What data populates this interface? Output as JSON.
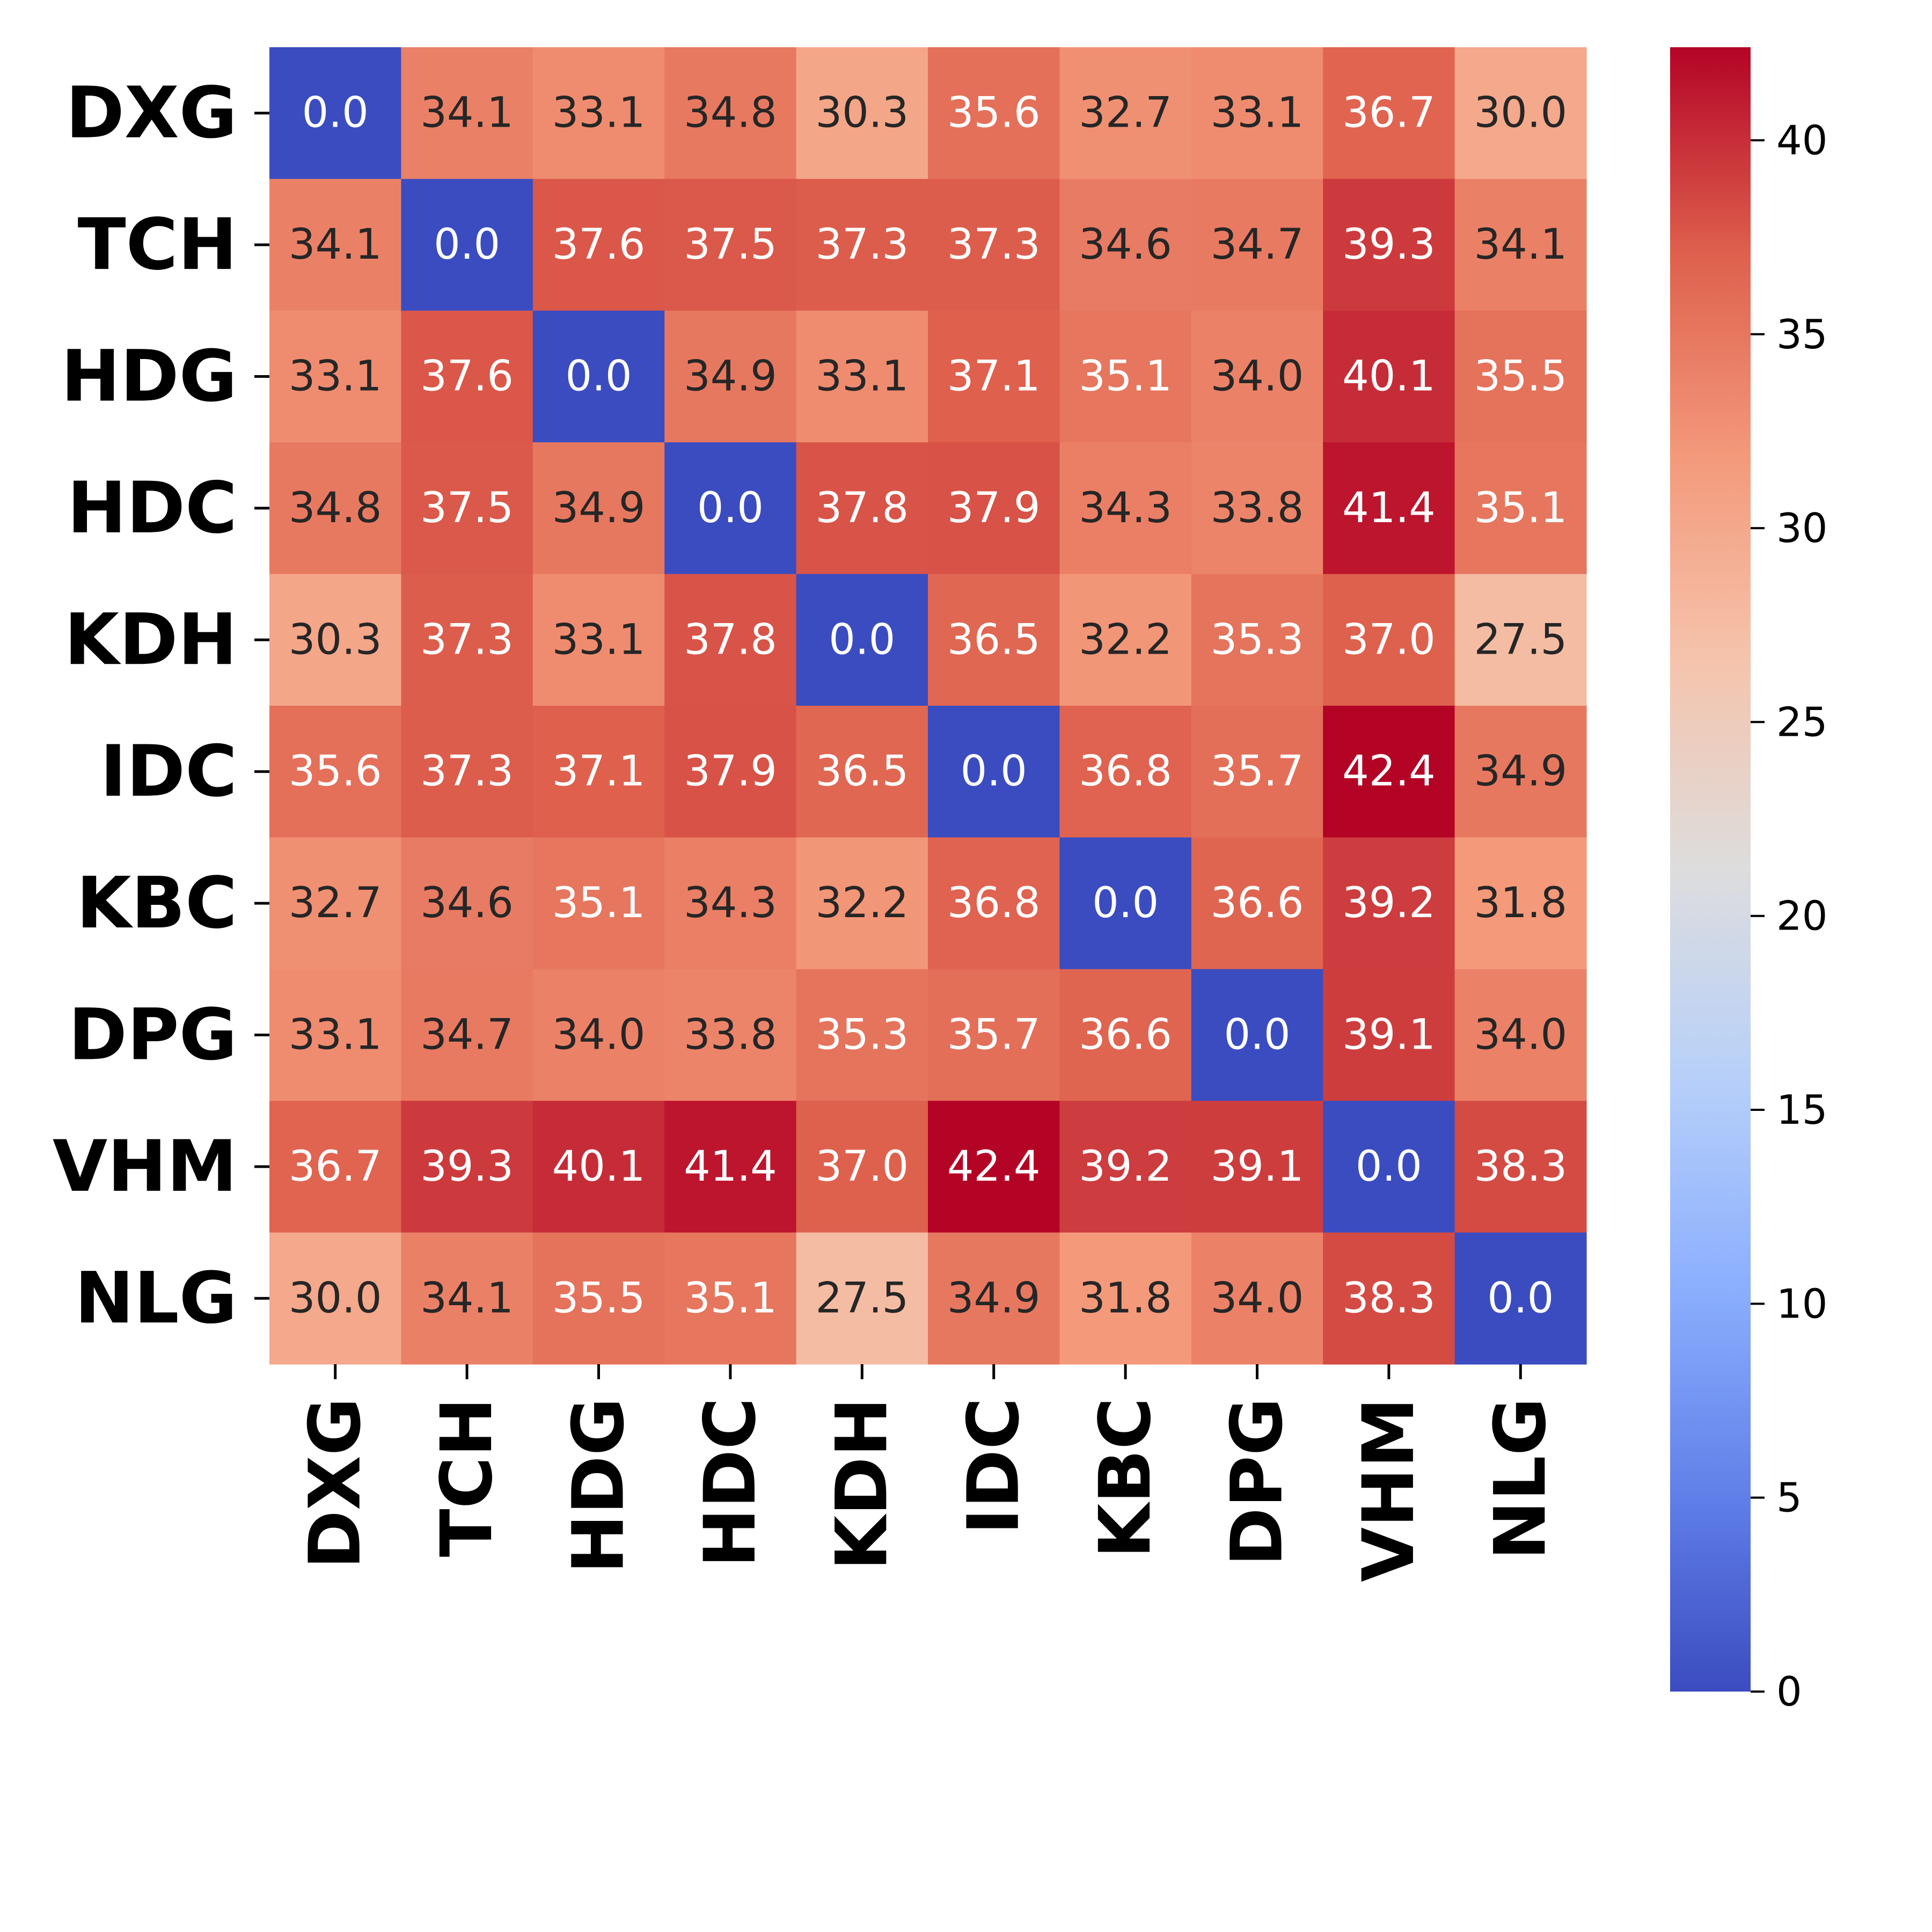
{
  "chart_data": {
    "type": "heatmap",
    "title": "",
    "xlabel": "",
    "ylabel": "",
    "row_labels": [
      "DXG",
      "TCH",
      "HDG",
      "HDC",
      "KDH",
      "IDC",
      "KBC",
      "DPG",
      "VHM",
      "NLG"
    ],
    "col_labels": [
      "DXG",
      "TCH",
      "HDG",
      "HDC",
      "KDH",
      "IDC",
      "KBC",
      "DPG",
      "VHM",
      "NLG"
    ],
    "values": [
      [
        0.0,
        34.1,
        33.1,
        34.8,
        30.3,
        35.6,
        32.7,
        33.1,
        36.7,
        30.0
      ],
      [
        34.1,
        0.0,
        37.6,
        37.5,
        37.3,
        37.3,
        34.6,
        34.7,
        39.3,
        34.1
      ],
      [
        33.1,
        37.6,
        0.0,
        34.9,
        33.1,
        37.1,
        35.1,
        34.0,
        40.1,
        35.5
      ],
      [
        34.8,
        37.5,
        34.9,
        0.0,
        37.8,
        37.9,
        34.3,
        33.8,
        41.4,
        35.1
      ],
      [
        30.3,
        37.3,
        33.1,
        37.8,
        0.0,
        36.5,
        32.2,
        35.3,
        37.0,
        27.5
      ],
      [
        35.6,
        37.3,
        37.1,
        37.9,
        36.5,
        0.0,
        36.8,
        35.7,
        42.4,
        34.9
      ],
      [
        32.7,
        34.6,
        35.1,
        34.3,
        32.2,
        36.8,
        0.0,
        36.6,
        39.2,
        31.8
      ],
      [
        33.1,
        34.7,
        34.0,
        33.8,
        35.3,
        35.7,
        36.6,
        0.0,
        39.1,
        34.0
      ],
      [
        36.7,
        39.3,
        40.1,
        41.4,
        37.0,
        42.4,
        39.2,
        39.1,
        0.0,
        38.3
      ],
      [
        30.0,
        34.1,
        35.5,
        35.1,
        27.5,
        34.9,
        31.8,
        34.0,
        38.3,
        0.0
      ]
    ],
    "value_format": "0.1f",
    "colormap": "coolwarm",
    "vmin": 0,
    "vmax": 42.4,
    "colorbar": {
      "ticks": [
        0,
        5,
        10,
        15,
        20,
        25,
        30,
        35,
        40
      ],
      "tick_labels": [
        "0",
        "5",
        "10",
        "15",
        "20",
        "25",
        "30",
        "35",
        "40"
      ]
    },
    "annotation_colors": {
      "dark": "#262626",
      "light": "#ffffff"
    }
  }
}
